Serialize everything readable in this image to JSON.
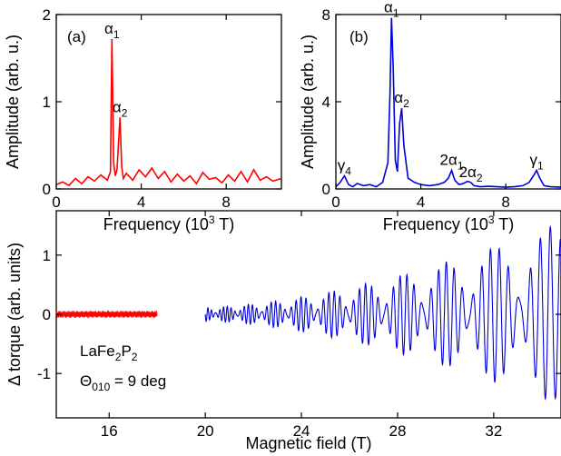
{
  "chart_data": [
    {
      "id": "a",
      "type": "line",
      "panel_label": "(a)",
      "xlabel": "Frequency (10",
      "xlabel_sup": "3",
      "xlabel_end": " T)",
      "ylabel": "Amplitude (arb. u.)",
      "xlim": [
        0,
        10.6
      ],
      "ylim": [
        0,
        2
      ],
      "xticks": [
        0,
        4,
        8
      ],
      "yticks": [
        0,
        1,
        2
      ],
      "color": "#ff0000",
      "x": [
        0.0,
        0.3,
        0.6,
        0.9,
        1.2,
        1.5,
        1.8,
        2.1,
        2.4,
        2.55,
        2.62,
        2.7,
        2.78,
        2.86,
        3.0,
        3.08,
        3.16,
        3.3,
        3.6,
        3.9,
        4.2,
        4.5,
        4.8,
        5.1,
        5.4,
        5.7,
        6.0,
        6.3,
        6.6,
        6.9,
        7.2,
        7.5,
        7.8,
        8.1,
        8.4,
        8.7,
        9.0,
        9.3,
        9.6,
        9.9,
        10.2,
        10.6
      ],
      "values": [
        0.05,
        0.08,
        0.04,
        0.12,
        0.06,
        0.14,
        0.09,
        0.16,
        0.1,
        0.2,
        1.72,
        0.3,
        0.15,
        0.22,
        0.82,
        0.25,
        0.12,
        0.18,
        0.1,
        0.22,
        0.14,
        0.24,
        0.12,
        0.2,
        0.08,
        0.17,
        0.09,
        0.15,
        0.06,
        0.19,
        0.11,
        0.13,
        0.07,
        0.16,
        0.09,
        0.2,
        0.08,
        0.22,
        0.1,
        0.14,
        0.09,
        0.12
      ],
      "annotations": [
        {
          "text": "α",
          "sub": "1",
          "x": 2.62,
          "y": 1.72
        },
        {
          "text": "α",
          "sub": "2",
          "x": 3.0,
          "y": 0.82
        }
      ]
    },
    {
      "id": "b",
      "type": "line",
      "panel_label": "(b)",
      "xlabel": "Frequency (10",
      "xlabel_sup": "3",
      "xlabel_end": " T)",
      "ylabel": "Amplitude (arb. u.)",
      "xlim": [
        0,
        10.6
      ],
      "ylim": [
        0,
        8
      ],
      "xticks": [
        0,
        4,
        8
      ],
      "yticks": [
        0,
        4,
        8
      ],
      "color": "#0000dd",
      "x": [
        0.0,
        0.2,
        0.4,
        0.6,
        0.8,
        1.0,
        1.3,
        1.6,
        1.9,
        2.2,
        2.45,
        2.55,
        2.62,
        2.7,
        2.8,
        2.9,
        3.0,
        3.1,
        3.2,
        3.4,
        3.7,
        4.0,
        4.4,
        4.8,
        5.1,
        5.3,
        5.45,
        5.6,
        5.8,
        6.0,
        6.2,
        6.35,
        6.5,
        6.8,
        7.2,
        7.6,
        8.0,
        8.4,
        8.8,
        9.1,
        9.3,
        9.45,
        9.6,
        9.8,
        10.1,
        10.6
      ],
      "values": [
        0.1,
        0.3,
        0.6,
        0.2,
        0.1,
        0.25,
        0.15,
        0.2,
        0.1,
        0.3,
        1.2,
        4.5,
        7.85,
        5.5,
        1.3,
        0.8,
        3.0,
        3.7,
        2.0,
        0.5,
        0.3,
        0.2,
        0.15,
        0.2,
        0.3,
        0.5,
        0.85,
        0.4,
        0.2,
        0.25,
        0.35,
        0.3,
        0.15,
        0.1,
        0.12,
        0.1,
        0.08,
        0.1,
        0.15,
        0.3,
        0.6,
        0.85,
        0.5,
        0.15,
        0.1,
        0.08
      ],
      "annotations": [
        {
          "text": "α",
          "sub": "1",
          "x": 2.62,
          "y": 7.85
        },
        {
          "text": "α",
          "sub": "2",
          "x": 3.1,
          "y": 3.7
        },
        {
          "text": "γ",
          "sub": "4",
          "x": 0.4,
          "y": 0.6
        },
        {
          "text": "2α",
          "sub": "1",
          "x": 5.45,
          "y": 0.85
        },
        {
          "text": "2α",
          "sub": "2",
          "x": 6.35,
          "y": 0.3
        },
        {
          "text": "γ",
          "sub": "1",
          "x": 9.45,
          "y": 0.85
        }
      ]
    },
    {
      "id": "c",
      "type": "line",
      "xlabel": "Magnetic field (T)",
      "ylabel": "Δ torque (arb. units)",
      "xlim": [
        13.8,
        34.8
      ],
      "ylim": [
        -1.75,
        1.75
      ],
      "xticks": [
        16,
        20,
        24,
        28,
        32
      ],
      "yticks": [
        -1,
        0,
        1
      ],
      "series": [
        {
          "color": "#ff0000",
          "range": [
            13.8,
            18.0
          ],
          "amp": [
            0.06,
            0.06
          ],
          "f1": 1.72,
          "f2": 0.82
        },
        {
          "color": "#0000dd",
          "range": [
            20.0,
            34.8
          ],
          "amp": [
            0.12,
            1.55
          ],
          "f1": 2.62,
          "f2": 3.1
        }
      ],
      "compound_label": "LaFe",
      "compound_sub1": "2",
      "compound_mid": "P",
      "compound_sub2": "2",
      "angle_label": "Θ",
      "angle_sub": "010",
      "angle_value": " = 9 deg"
    }
  ]
}
